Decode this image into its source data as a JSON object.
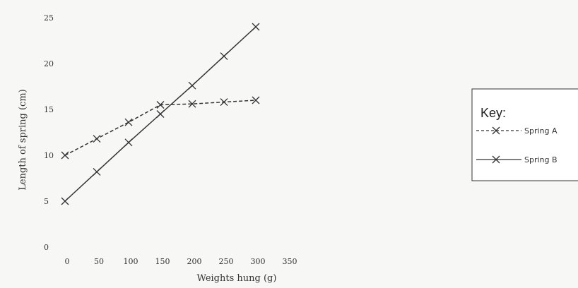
{
  "chart_data": {
    "type": "line",
    "title": "",
    "xlabel": "Weights hung (g)",
    "ylabel": "Length of spring (cm)",
    "xlim": [
      0,
      350
    ],
    "ylim": [
      0,
      25
    ],
    "xticks": [
      "0",
      "50",
      "100",
      "150",
      "200",
      "250",
      "300",
      "350"
    ],
    "yticks": [
      "0",
      "5",
      "10",
      "15",
      "20",
      "25"
    ],
    "grid": false,
    "legend": {
      "title": "Key:",
      "placement": "right"
    },
    "series": [
      {
        "name": "Spring A",
        "style": "dashed",
        "marker": "x",
        "x": [
          0,
          50,
          100,
          150,
          200,
          250,
          300
        ],
        "y": [
          10,
          11.8,
          13.6,
          15.5,
          15.6,
          15.8,
          16
        ]
      },
      {
        "name": "Spring B",
        "style": "solid",
        "marker": "x",
        "x": [
          0,
          50,
          100,
          150,
          200,
          250,
          300
        ],
        "y": [
          5,
          8.2,
          11.4,
          14.5,
          17.6,
          20.8,
          24
        ]
      }
    ]
  }
}
